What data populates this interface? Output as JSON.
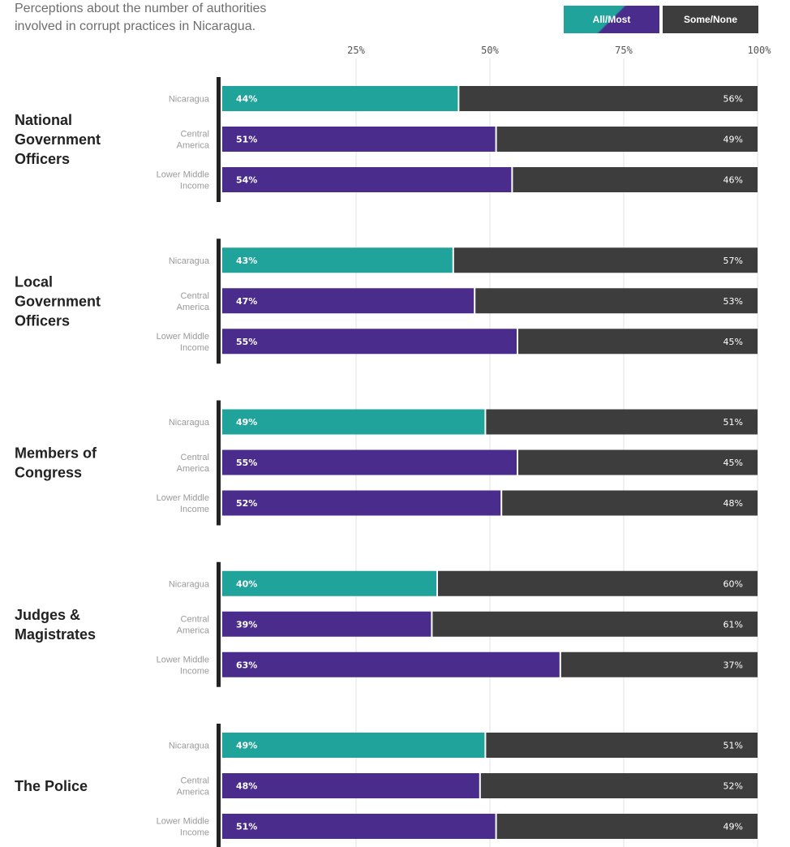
{
  "subtitle": "Perceptions about the number of authorities\ninvolved in corrupt practices in Nicaragua.",
  "legend": {
    "all_most": "All/Most",
    "some_none": "Some/None"
  },
  "colors": {
    "nicaragua": "#1fa39b",
    "other": "#4a2c8c",
    "rest": "#3d3d3d",
    "grid": "#e2e2e2",
    "axis_bar": "#222222"
  },
  "chart_data": {
    "type": "bar",
    "orientation": "horizontal",
    "stacked": true,
    "xlim": [
      0,
      100
    ],
    "ticks": [
      25,
      50,
      75,
      100
    ],
    "tick_labels": [
      "25%",
      "50%",
      "75%",
      "100%"
    ],
    "series_names": [
      "All/Most",
      "Some/None"
    ],
    "groups": [
      {
        "label": "National\nGovernment\nOfficers",
        "rows": [
          {
            "label": "Nicaragua",
            "all_most": 44,
            "some_none": 56
          },
          {
            "label": "Central\nAmerica",
            "all_most": 51,
            "some_none": 49
          },
          {
            "label": "Lower Middle\nIncome",
            "all_most": 54,
            "some_none": 46
          }
        ]
      },
      {
        "label": "Local\nGovernment\nOfficers",
        "rows": [
          {
            "label": "Nicaragua",
            "all_most": 43,
            "some_none": 57
          },
          {
            "label": "Central\nAmerica",
            "all_most": 47,
            "some_none": 53
          },
          {
            "label": "Lower Middle\nIncome",
            "all_most": 55,
            "some_none": 45
          }
        ]
      },
      {
        "label": "Members of\nCongress",
        "rows": [
          {
            "label": "Nicaragua",
            "all_most": 49,
            "some_none": 51
          },
          {
            "label": "Central\nAmerica",
            "all_most": 55,
            "some_none": 45
          },
          {
            "label": "Lower Middle\nIncome",
            "all_most": 52,
            "some_none": 48
          }
        ]
      },
      {
        "label": "Judges &\nMagistrates",
        "rows": [
          {
            "label": "Nicaragua",
            "all_most": 40,
            "some_none": 60
          },
          {
            "label": "Central\nAmerica",
            "all_most": 39,
            "some_none": 61
          },
          {
            "label": "Lower Middle\nIncome",
            "all_most": 63,
            "some_none": 37
          }
        ]
      },
      {
        "label": "The Police",
        "rows": [
          {
            "label": "Nicaragua",
            "all_most": 49,
            "some_none": 51
          },
          {
            "label": "Central\nAmerica",
            "all_most": 48,
            "some_none": 52
          },
          {
            "label": "Lower Middle\nIncome",
            "all_most": 51,
            "some_none": 49
          }
        ]
      }
    ]
  }
}
